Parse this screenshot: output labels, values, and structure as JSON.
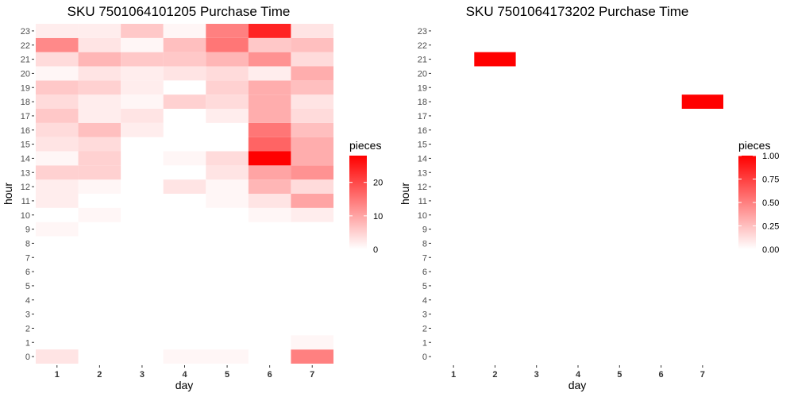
{
  "chart_data": [
    {
      "type": "heatmap",
      "title": "SKU 7501064101205 Purchase Time",
      "xlabel": "day",
      "ylabel": "hour",
      "x": [
        1,
        2,
        3,
        4,
        5,
        6,
        7
      ],
      "y": [
        0,
        1,
        2,
        3,
        4,
        5,
        6,
        7,
        8,
        9,
        10,
        11,
        12,
        13,
        14,
        15,
        16,
        17,
        18,
        19,
        20,
        21,
        22,
        23
      ],
      "color_low": "#FFFFFF",
      "color_high": "#FF0000",
      "legend": {
        "title": "pieces",
        "min": 0,
        "max": 28,
        "breaks": [
          0,
          10,
          20
        ]
      },
      "values": [
        [
          3,
          0,
          0,
          1,
          1,
          0,
          14
        ],
        [
          0,
          0,
          0,
          0,
          0,
          0,
          1
        ],
        [
          0,
          0,
          0,
          0,
          0,
          0,
          0
        ],
        [
          0,
          0,
          0,
          0,
          0,
          0,
          0
        ],
        [
          0,
          0,
          0,
          0,
          0,
          0,
          0
        ],
        [
          0,
          0,
          0,
          0,
          0,
          0,
          0
        ],
        [
          0,
          0,
          0,
          0,
          0,
          0,
          0
        ],
        [
          0,
          0,
          0,
          0,
          0,
          0,
          0
        ],
        [
          0,
          0,
          0,
          0,
          0,
          0,
          0
        ],
        [
          1,
          0,
          0,
          0,
          0,
          0,
          0
        ],
        [
          0,
          1,
          0,
          0,
          0,
          1,
          2
        ],
        [
          2,
          0,
          0,
          0,
          1,
          3,
          10
        ],
        [
          2,
          1,
          0,
          3,
          1,
          8,
          4
        ],
        [
          5,
          5,
          0,
          0,
          3,
          10,
          12
        ],
        [
          1,
          5,
          0,
          1,
          4,
          28,
          9
        ],
        [
          3,
          4,
          0,
          0,
          0,
          17,
          9
        ],
        [
          4,
          7,
          2,
          0,
          0,
          15,
          7
        ],
        [
          6,
          2,
          3,
          0,
          2,
          9,
          4
        ],
        [
          4,
          2,
          1,
          5,
          4,
          9,
          3
        ],
        [
          6,
          5,
          2,
          0,
          5,
          9,
          7
        ],
        [
          1,
          3,
          2,
          3,
          4,
          2,
          9
        ],
        [
          4,
          8,
          6,
          6,
          8,
          12,
          4
        ],
        [
          13,
          3,
          1,
          7,
          15,
          6,
          7
        ],
        [
          2,
          2,
          6,
          1,
          14,
          24,
          3
        ]
      ]
    },
    {
      "type": "heatmap",
      "title": "SKU 7501064173202 Purchase Time",
      "xlabel": "day",
      "ylabel": "hour",
      "x": [
        1,
        2,
        3,
        4,
        5,
        6,
        7
      ],
      "y": [
        0,
        1,
        2,
        3,
        4,
        5,
        6,
        7,
        8,
        9,
        10,
        11,
        12,
        13,
        14,
        15,
        16,
        17,
        18,
        19,
        20,
        21,
        22,
        23
      ],
      "color_low": "#FFFFFF",
      "color_high": "#FF0000",
      "legend": {
        "title": "pieces",
        "min": 0,
        "max": 1,
        "breaks": [
          0.0,
          0.25,
          0.5,
          0.75,
          1.0
        ],
        "break_labels": [
          "0.00",
          "0.25",
          "0.50",
          "0.75",
          "1.00"
        ]
      },
      "cells": [
        {
          "x": 2,
          "y": 21,
          "value": 1
        },
        {
          "x": 7,
          "y": 18,
          "value": 1
        }
      ]
    }
  ]
}
